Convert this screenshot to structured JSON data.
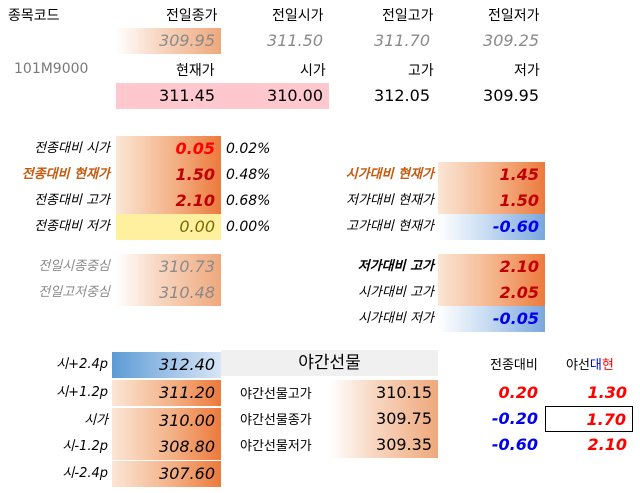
{
  "header": {
    "code_label": "종목코드",
    "code_value": "101M9000",
    "prev_close_label": "전일종가",
    "prev_open_label": "전일시가",
    "prev_high_label": "전일고가",
    "prev_low_label": "전일저가",
    "prev_close": "309.95",
    "prev_open": "311.50",
    "prev_high": "311.70",
    "prev_low": "309.25",
    "current_label": "현재가",
    "open_label": "시가",
    "high_label": "고가",
    "low_label": "저가",
    "current": "311.45",
    "open": "310.00",
    "high": "312.05",
    "low": "309.95"
  },
  "left_stats": [
    {
      "label": "전종대비 시가",
      "value": "0.05",
      "pct": "0.02%"
    },
    {
      "label": "전종대비 현재가",
      "value": "1.50",
      "pct": "0.48%"
    },
    {
      "label": "전종대비 고가",
      "value": "2.10",
      "pct": "0.68%"
    },
    {
      "label": "전종대비 저가",
      "value": "0.00",
      "pct": "0.00%"
    }
  ],
  "centers": [
    {
      "label": "전일시종중심",
      "value": "310.73"
    },
    {
      "label": "전일고저중심",
      "value": "310.48"
    }
  ],
  "right_stats": [
    {
      "label": "시가대비 현재가",
      "value": "1.45"
    },
    {
      "label": "저가대비 현재가",
      "value": "1.50"
    },
    {
      "label": "고가대비 현재가",
      "value": "-0.60"
    }
  ],
  "right_stats2": [
    {
      "label": "저가대비 고가",
      "value": "2.10"
    },
    {
      "label": "시가대비 고가",
      "value": "2.05"
    },
    {
      "label": "시가대비 저가",
      "value": "-0.05"
    }
  ],
  "pivots": [
    {
      "label": "시+2.4p",
      "value": "312.40"
    },
    {
      "label": "시+1.2p",
      "value": "311.20"
    },
    {
      "label": "시가",
      "value": "310.00"
    },
    {
      "label": "시-1.2p",
      "value": "308.80"
    },
    {
      "label": "시-2.4p",
      "value": "307.60"
    }
  ],
  "night": {
    "title": "야간선물",
    "col1": "전종대비",
    "col2_a": "야선",
    "col2_b": "대",
    "col2_c": "현",
    "rows": [
      {
        "label": "야간선물고가",
        "value": "310.15",
        "diff": "0.20",
        "vs": "1.30"
      },
      {
        "label": "야간선물종가",
        "value": "309.75",
        "diff": "-0.20",
        "vs": "1.70"
      },
      {
        "label": "야간선물저가",
        "value": "309.35",
        "diff": "-0.60",
        "vs": "2.10"
      }
    ]
  },
  "colors": {
    "positive": "#ff0000",
    "negative": "#0000ee",
    "orange_fill": "#ec7a3c",
    "pink_fill": "#ffc7ce",
    "yellow_fill": "#fff0a0",
    "blue_fill": "#5b9bd5"
  }
}
